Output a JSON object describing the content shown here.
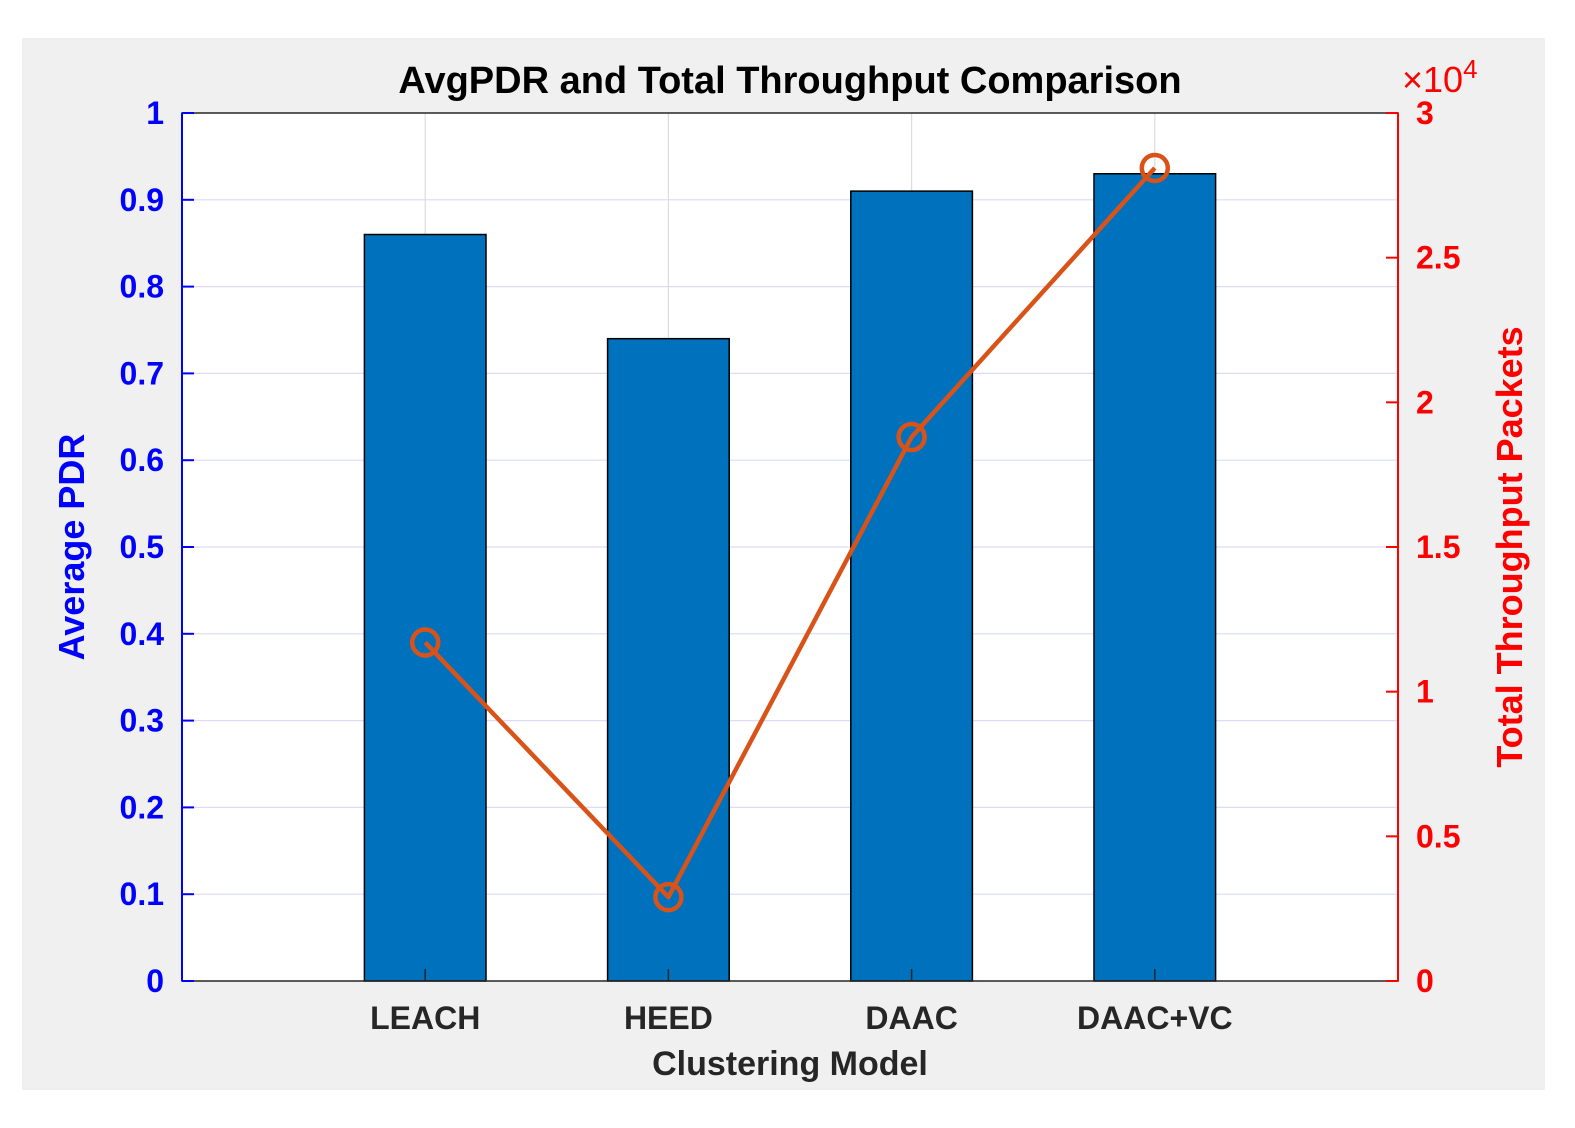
{
  "chart_data": {
    "type": "bar+line",
    "title": "AvgPDR and Total Throughput Comparison",
    "xlabel": "Clustering Model",
    "categories": [
      "LEACH",
      "HEED",
      "DAAC",
      "DAAC+VC"
    ],
    "left_axis": {
      "label": "Average PDR",
      "ylim": [
        0,
        1
      ],
      "ticks": [
        "0",
        "0.1",
        "0.2",
        "0.3",
        "0.4",
        "0.5",
        "0.6",
        "0.7",
        "0.8",
        "0.9",
        "1"
      ],
      "color": "#0000ff"
    },
    "right_axis": {
      "label": "Total Throughput Packets",
      "ylim": [
        0,
        30000
      ],
      "ticks": [
        "0",
        "0.5",
        "1",
        "1.5",
        "2",
        "2.5",
        "3"
      ],
      "exponent_base": "×10",
      "exponent_power": "4",
      "color": "#ff0000"
    },
    "series": [
      {
        "type": "bar",
        "axis": "left",
        "values": [
          0.86,
          0.74,
          0.91,
          0.93
        ],
        "color": "#0072bd"
      },
      {
        "type": "line",
        "axis": "right",
        "marker": "circle",
        "values": [
          11700,
          2900,
          18800,
          28100
        ],
        "color": "#d95319"
      }
    ],
    "grid": true
  }
}
